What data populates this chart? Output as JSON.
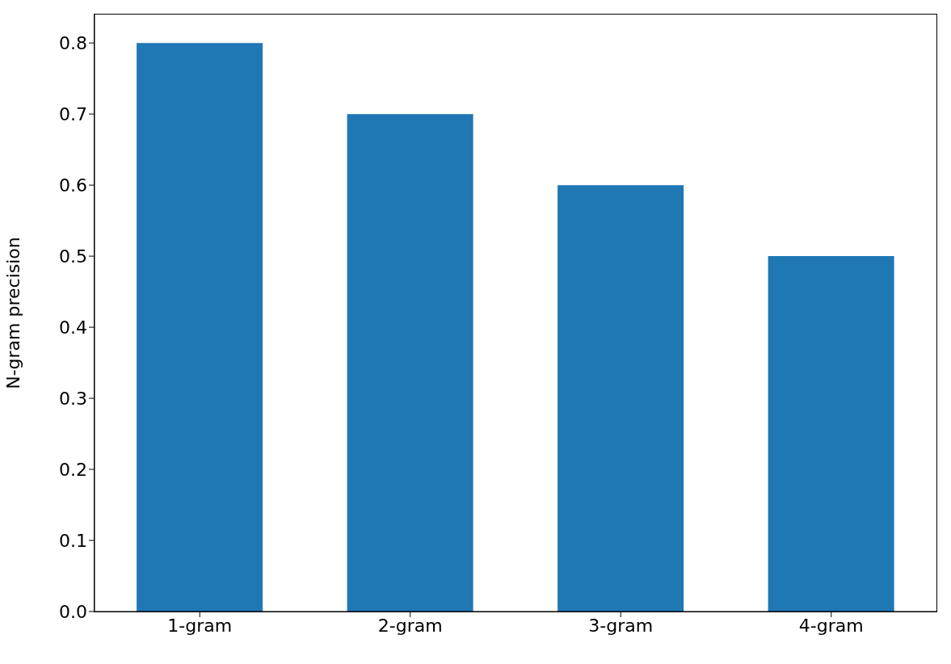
{
  "chart_data": {
    "type": "bar",
    "ylabel": "N-gram precision",
    "categories": [
      "1-gram",
      "2-gram",
      "3-gram",
      "4-gram"
    ],
    "values": [
      0.8,
      0.7,
      0.6,
      0.5
    ],
    "color": "#1f77b4",
    "ylim": [
      0,
      0.84
    ],
    "yticks": [
      {
        "value": 0,
        "label": "0.0"
      },
      0.1,
      0.2,
      0.3,
      0.4,
      0.5,
      0.6,
      0.7,
      0.8
    ],
    "grid": false,
    "legend": false
  }
}
